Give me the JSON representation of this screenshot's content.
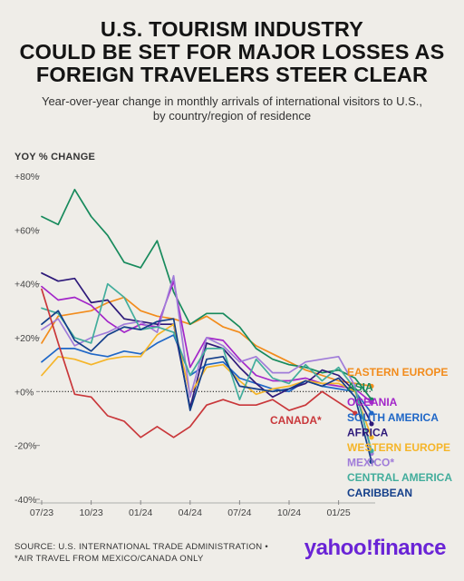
{
  "header": {
    "title_lines": [
      "U.S. TOURISM INDUSTRY",
      "COULD BE SET FOR MAJOR LOSSES AS",
      "FOREIGN TRAVELERS STEER CLEAR"
    ],
    "subtitle_lines": [
      "Year-over-year change in monthly arrivals of international visitors to U.S.,",
      "by country/region of residence"
    ]
  },
  "footer": {
    "source_lines": [
      "SOURCE: U.S. INTERNATIONAL TRADE ADMINISTRATION •",
      "*AIR TRAVEL FROM MEXICO/CANADA ONLY"
    ],
    "brand": "yahoo!finance"
  },
  "chart_data": {
    "type": "line",
    "ylabel": "YOY % CHANGE",
    "ylim": [
      -40,
      80
    ],
    "y_ticks": [
      80,
      60,
      40,
      20,
      0,
      -20,
      -40
    ],
    "y_tick_labels": [
      "+80%",
      "+60%",
      "+40%",
      "+20%",
      "+0%",
      "-20%",
      "-40%"
    ],
    "x_ticks": [
      "07/23",
      "10/23",
      "01/24",
      "04/24",
      "07/24",
      "10/24",
      "01/25"
    ],
    "x_tick_months": [
      0,
      3,
      6,
      9,
      12,
      15,
      18
    ],
    "x_range_months": [
      0,
      20
    ],
    "zero_line": "dotted",
    "series": [
      {
        "name": "EASTERN EUROPE",
        "color": "#f28c1c",
        "values": [
          18,
          28,
          29,
          30,
          33,
          35,
          30,
          28,
          27,
          25,
          28,
          24,
          22,
          17,
          14,
          11,
          8,
          6,
          4,
          3,
          2
        ]
      },
      {
        "name": "ASIA",
        "color": "#178a5c",
        "values": [
          65,
          62,
          75,
          65,
          58,
          48,
          46,
          56,
          37,
          25,
          29,
          29,
          24,
          16,
          12,
          10,
          9,
          7,
          8,
          5,
          -3
        ]
      },
      {
        "name": "OCEANIA",
        "color": "#a326c9",
        "values": [
          39,
          34,
          35,
          32,
          26,
          22,
          25,
          24,
          41,
          9,
          20,
          19,
          12,
          6,
          4,
          4,
          5,
          3,
          2,
          1,
          -4
        ]
      },
      {
        "name": "SOUTH AMERICA",
        "color": "#1f67c7",
        "values": [
          11,
          16,
          16,
          14,
          13,
          15,
          14,
          18,
          21,
          6,
          10,
          11,
          5,
          3,
          1,
          0,
          4,
          2,
          1,
          0,
          -8
        ]
      },
      {
        "name": "AFRICA",
        "color": "#2e1a7a",
        "values": [
          44,
          41,
          42,
          33,
          34,
          27,
          26,
          25,
          25,
          -6,
          18,
          16,
          9,
          3,
          -2,
          1,
          3,
          8,
          6,
          0,
          -12
        ]
      },
      {
        "name": "WESTERN EUROPE",
        "color": "#f5b529",
        "values": [
          6,
          13,
          12,
          10,
          12,
          13,
          13,
          21,
          25,
          -1,
          9,
          10,
          4,
          -1,
          1,
          2,
          4,
          3,
          3,
          0,
          -17
        ]
      },
      {
        "name": "MEXICO*",
        "color": "#a07cd9",
        "values": [
          23,
          27,
          17,
          20,
          22,
          25,
          26,
          22,
          43,
          -2,
          20,
          17,
          11,
          13,
          7,
          7,
          11,
          12,
          13,
          2,
          -23
        ]
      },
      {
        "name": "CENTRAL AMERICA",
        "color": "#42ad9c",
        "values": [
          31,
          29,
          20,
          18,
          40,
          35,
          23,
          24,
          22,
          6,
          16,
          16,
          -3,
          12,
          5,
          3,
          10,
          4,
          9,
          1,
          -22
        ]
      },
      {
        "name": "CARIBBEAN",
        "color": "#143f8a",
        "values": [
          25,
          30,
          19,
          15,
          21,
          24,
          23,
          26,
          27,
          -7,
          12,
          13,
          2,
          1,
          0,
          1,
          4,
          2,
          5,
          -2,
          -26
        ]
      },
      {
        "name": "CANADA*",
        "color": "#c9373a",
        "values": [
          38,
          18,
          -1,
          -2,
          -9,
          -11,
          -17,
          -13,
          -17,
          -13,
          -5,
          -3,
          -5,
          -5,
          -3,
          -7,
          -5,
          0,
          -4,
          -8,
          null
        ]
      }
    ]
  }
}
